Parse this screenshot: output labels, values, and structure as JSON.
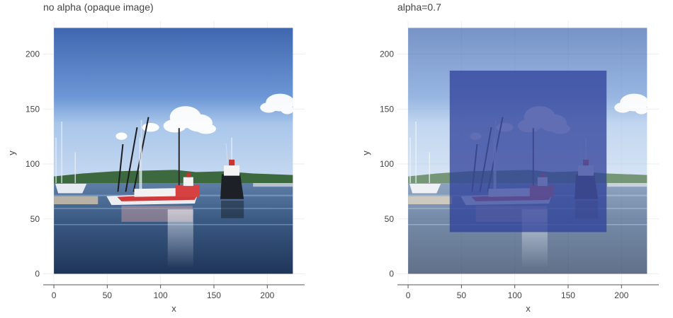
{
  "chart_data": [
    {
      "type": "image",
      "title": "no alpha (opaque image)",
      "xlabel": "x",
      "ylabel": "y",
      "xlim": [
        -10,
        235
      ],
      "ylim": [
        -10,
        230
      ],
      "xticks": [
        0,
        50,
        100,
        150,
        200
      ],
      "yticks": [
        0,
        50,
        100,
        150,
        200
      ],
      "image_extent": {
        "x": [
          0,
          224
        ],
        "y": [
          0,
          224
        ]
      },
      "grid": true
    },
    {
      "type": "image",
      "title": "alpha=0.7",
      "xlabel": "x",
      "ylabel": "y",
      "xlim": [
        -10,
        235
      ],
      "ylim": [
        -10,
        230
      ],
      "xticks": [
        0,
        50,
        100,
        150,
        200
      ],
      "yticks": [
        0,
        50,
        100,
        150,
        200
      ],
      "image_extent": {
        "x": [
          0,
          224
        ],
        "y": [
          0,
          224
        ]
      },
      "image_alpha": 0.7,
      "overlay_rect": {
        "x": [
          39,
          186
        ],
        "y": [
          38,
          185
        ],
        "color": "#2d3f9a",
        "opacity": 0.75
      },
      "grid": true
    }
  ]
}
